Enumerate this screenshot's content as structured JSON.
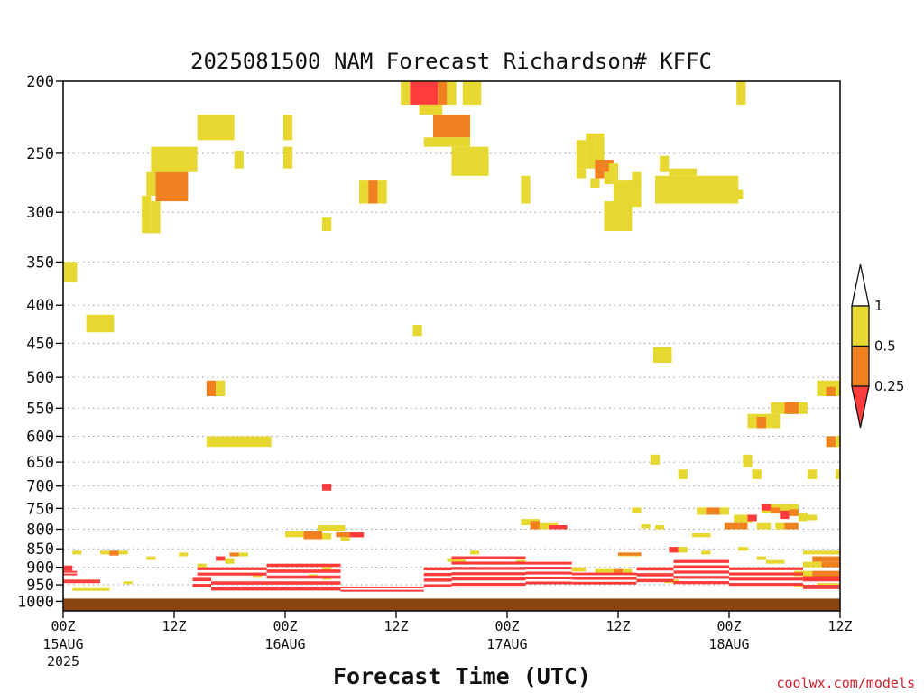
{
  "chart_data": {
    "type": "heatmap",
    "title": "2025081500 NAM Forecast Richardson# KFFC",
    "xlabel": "Forecast Time (UTC)",
    "ylabel": "",
    "credit": "coolwx.com/models",
    "x_range_hours": [
      0,
      84
    ],
    "y_scale": "log-pressure",
    "y_range_hPa": [
      1030,
      200
    ],
    "y_ticks": [
      200,
      250,
      300,
      350,
      400,
      450,
      500,
      550,
      600,
      650,
      700,
      750,
      800,
      850,
      900,
      950,
      1000
    ],
    "y_tick_labels": [
      "200",
      "250",
      "300",
      "350",
      "400",
      "450",
      "500",
      "550",
      "600",
      "650",
      "700",
      "750",
      "800",
      "850",
      "900",
      "950",
      "1000"
    ],
    "x_ticks": [
      {
        "hour": 0,
        "label": "00Z",
        "date": "15AUG",
        "year": "2025"
      },
      {
        "hour": 12,
        "label": "12Z",
        "date": "",
        "year": ""
      },
      {
        "hour": 24,
        "label": "00Z",
        "date": "16AUG",
        "year": ""
      },
      {
        "hour": 36,
        "label": "12Z",
        "date": "",
        "year": ""
      },
      {
        "hour": 48,
        "label": "00Z",
        "date": "17AUG",
        "year": ""
      },
      {
        "hour": 60,
        "label": "12Z",
        "date": "",
        "year": ""
      },
      {
        "hour": 72,
        "label": "00Z",
        "date": "18AUG",
        "year": ""
      },
      {
        "hour": 84,
        "label": "12Z",
        "date": "",
        "year": ""
      }
    ],
    "grid": "dotted horizontal at pressure levels",
    "legend": {
      "placement": "right",
      "labels": [
        "1",
        "0.5",
        "0.25"
      ],
      "bins": [
        {
          "range": "0.5-1",
          "color": "#e6d830"
        },
        {
          "range": "0.25-0.5",
          "color": "#f08020"
        },
        {
          "range": "<0.25",
          "color": "#ff3b3b"
        }
      ]
    },
    "ground_color": "#8b4513",
    "surface_pressure_hPa": 1000,
    "cells": [
      {
        "h0": 36.5,
        "h1": 37.5,
        "p0": 200,
        "p1": 215,
        "c": "Y"
      },
      {
        "h0": 37.5,
        "h1": 40.5,
        "p0": 200,
        "p1": 215,
        "c": "R"
      },
      {
        "h0": 40.5,
        "h1": 41.5,
        "p0": 200,
        "p1": 215,
        "c": "O"
      },
      {
        "h0": 41.5,
        "h1": 42.5,
        "p0": 200,
        "p1": 215,
        "c": "Y"
      },
      {
        "h0": 43.2,
        "h1": 45.2,
        "p0": 200,
        "p1": 215,
        "c": "Y"
      },
      {
        "h0": 38.5,
        "h1": 41,
        "p0": 215,
        "p1": 222,
        "c": "Y"
      },
      {
        "h0": 40,
        "h1": 44,
        "p0": 222,
        "p1": 238,
        "c": "O"
      },
      {
        "h0": 39,
        "h1": 44,
        "p0": 238,
        "p1": 245,
        "c": "Y"
      },
      {
        "h0": 42,
        "h1": 46,
        "p0": 245,
        "p1": 268,
        "c": "Y"
      },
      {
        "h0": 14.5,
        "h1": 18.5,
        "p0": 222,
        "p1": 240,
        "c": "Y"
      },
      {
        "h0": 23.8,
        "h1": 24.8,
        "p0": 222,
        "p1": 240,
        "c": "Y"
      },
      {
        "h0": 23.8,
        "h1": 24.8,
        "p0": 245,
        "p1": 262,
        "c": "Y"
      },
      {
        "h0": 18.5,
        "h1": 19.5,
        "p0": 248,
        "p1": 262,
        "c": "Y"
      },
      {
        "h0": 9.5,
        "h1": 14.5,
        "p0": 245,
        "p1": 265,
        "c": "Y"
      },
      {
        "h0": 9,
        "h1": 10,
        "p0": 265,
        "p1": 285,
        "c": "Y"
      },
      {
        "h0": 10,
        "h1": 13.5,
        "p0": 265,
        "p1": 290,
        "c": "O"
      },
      {
        "h0": 8.5,
        "h1": 9.5,
        "p0": 285,
        "p1": 320,
        "c": "Y"
      },
      {
        "h0": 9.5,
        "h1": 10.5,
        "p0": 290,
        "p1": 320,
        "c": "Y"
      },
      {
        "h0": 28,
        "h1": 29,
        "p0": 305,
        "p1": 318,
        "c": "Y"
      },
      {
        "h0": 32,
        "h1": 33,
        "p0": 272,
        "p1": 292,
        "c": "Y"
      },
      {
        "h0": 33,
        "h1": 34,
        "p0": 272,
        "p1": 292,
        "c": "O"
      },
      {
        "h0": 34,
        "h1": 35,
        "p0": 272,
        "p1": 292,
        "c": "Y"
      },
      {
        "h0": 49.5,
        "h1": 50.5,
        "p0": 268,
        "p1": 292,
        "c": "Y"
      },
      {
        "h0": 55.5,
        "h1": 56.5,
        "p0": 240,
        "p1": 262,
        "c": "Y"
      },
      {
        "h0": 55.5,
        "h1": 56.5,
        "p0": 262,
        "p1": 270,
        "c": "Y"
      },
      {
        "h0": 56.5,
        "h1": 57.5,
        "p0": 235,
        "p1": 262,
        "c": "Y"
      },
      {
        "h0": 57.5,
        "h1": 58.5,
        "p0": 235,
        "p1": 255,
        "c": "Y"
      },
      {
        "h0": 57.5,
        "h1": 58.5,
        "p0": 255,
        "p1": 270,
        "c": "O"
      },
      {
        "h0": 58.5,
        "h1": 59.5,
        "p0": 255,
        "p1": 265,
        "c": "O"
      },
      {
        "h0": 58.5,
        "h1": 59.5,
        "p0": 265,
        "p1": 275,
        "c": "Y"
      },
      {
        "h0": 59,
        "h1": 60,
        "p0": 258,
        "p1": 272,
        "c": "Y"
      },
      {
        "h0": 57,
        "h1": 58,
        "p0": 270,
        "p1": 278,
        "c": "Y"
      },
      {
        "h0": 58.5,
        "h1": 61.5,
        "p0": 290,
        "p1": 318,
        "c": "Y"
      },
      {
        "h0": 59.5,
        "h1": 62.5,
        "p0": 272,
        "p1": 295,
        "c": "Y"
      },
      {
        "h0": 61.5,
        "h1": 62.5,
        "p0": 265,
        "p1": 280,
        "c": "Y"
      },
      {
        "h0": 64.5,
        "h1": 65.5,
        "p0": 252,
        "p1": 265,
        "c": "Y"
      },
      {
        "h0": 64,
        "h1": 73,
        "p0": 268,
        "p1": 292,
        "c": "Y"
      },
      {
        "h0": 65.5,
        "h1": 68.5,
        "p0": 262,
        "p1": 268,
        "c": "Y"
      },
      {
        "h0": 72.5,
        "h1": 73.5,
        "p0": 280,
        "p1": 288,
        "c": "Y"
      },
      {
        "h0": 72.8,
        "h1": 73.8,
        "p0": 200,
        "p1": 215,
        "c": "Y"
      },
      {
        "h0": 0,
        "h1": 1.5,
        "p0": 350,
        "p1": 372,
        "c": "Y"
      },
      {
        "h0": 2.5,
        "h1": 5.5,
        "p0": 412,
        "p1": 435,
        "c": "Y"
      },
      {
        "h0": 37.8,
        "h1": 38.8,
        "p0": 425,
        "p1": 440,
        "c": "Y"
      },
      {
        "h0": 63.8,
        "h1": 65.8,
        "p0": 455,
        "p1": 478,
        "c": "Y"
      },
      {
        "h0": 15.5,
        "h1": 16.5,
        "p0": 505,
        "p1": 530,
        "c": "O"
      },
      {
        "h0": 16.5,
        "h1": 17.5,
        "p0": 505,
        "p1": 530,
        "c": "Y"
      },
      {
        "h0": 15.5,
        "h1": 22.5,
        "p0": 600,
        "p1": 620,
        "c": "Y"
      },
      {
        "h0": 28,
        "h1": 29,
        "p0": 695,
        "p1": 710,
        "c": "R"
      },
      {
        "h0": 81.5,
        "h1": 84,
        "p0": 505,
        "p1": 530,
        "c": "Y"
      },
      {
        "h0": 82.5,
        "h1": 83.5,
        "p0": 515,
        "p1": 530,
        "c": "O"
      },
      {
        "h0": 76.5,
        "h1": 80.5,
        "p0": 540,
        "p1": 560,
        "c": "Y"
      },
      {
        "h0": 78,
        "h1": 79.5,
        "p0": 540,
        "p1": 560,
        "c": "O"
      },
      {
        "h0": 74,
        "h1": 77.5,
        "p0": 560,
        "p1": 585,
        "c": "Y"
      },
      {
        "h0": 75,
        "h1": 76,
        "p0": 565,
        "p1": 585,
        "c": "O"
      },
      {
        "h0": 82.5,
        "h1": 84,
        "p0": 600,
        "p1": 620,
        "c": "Y"
      },
      {
        "h0": 82.5,
        "h1": 83.5,
        "p0": 600,
        "p1": 620,
        "c": "O"
      },
      {
        "h0": 73.5,
        "h1": 74.5,
        "p0": 635,
        "p1": 660,
        "c": "Y"
      },
      {
        "h0": 74.5,
        "h1": 75.5,
        "p0": 665,
        "p1": 685,
        "c": "Y"
      },
      {
        "h0": 80.5,
        "h1": 81.5,
        "p0": 665,
        "p1": 685,
        "c": "Y"
      },
      {
        "h0": 83.5,
        "h1": 84,
        "p0": 665,
        "p1": 685,
        "c": "Y"
      },
      {
        "h0": 63.5,
        "h1": 64.5,
        "p0": 635,
        "p1": 655,
        "c": "Y"
      },
      {
        "h0": 66.5,
        "h1": 67.5,
        "p0": 665,
        "p1": 685,
        "c": "Y"
      },
      {
        "h0": 61.5,
        "h1": 62.5,
        "p0": 748,
        "p1": 760,
        "c": "Y"
      },
      {
        "h0": 68.5,
        "h1": 69.5,
        "p0": 748,
        "p1": 765,
        "c": "Y"
      },
      {
        "h0": 69.5,
        "h1": 71,
        "p0": 748,
        "p1": 765,
        "c": "O"
      },
      {
        "h0": 71,
        "h1": 72,
        "p0": 748,
        "p1": 765,
        "c": "Y"
      },
      {
        "h0": 75.5,
        "h1": 79.5,
        "p0": 740,
        "p1": 760,
        "c": "Y"
      },
      {
        "h0": 75.5,
        "h1": 76.5,
        "p0": 740,
        "p1": 755,
        "c": "R"
      },
      {
        "h0": 76.5,
        "h1": 77.5,
        "p0": 748,
        "p1": 762,
        "c": "O"
      },
      {
        "h0": 77.5,
        "h1": 78.5,
        "p0": 755,
        "p1": 775,
        "c": "R"
      },
      {
        "h0": 78.5,
        "h1": 79.5,
        "p0": 752,
        "p1": 768,
        "c": "O"
      },
      {
        "h0": 72.5,
        "h1": 74.5,
        "p0": 765,
        "p1": 785,
        "c": "Y"
      },
      {
        "h0": 74,
        "h1": 75,
        "p0": 765,
        "p1": 780,
        "c": "R"
      },
      {
        "h0": 79.5,
        "h1": 80.5,
        "p0": 760,
        "p1": 780,
        "c": "Y"
      },
      {
        "h0": 80.5,
        "h1": 81.5,
        "p0": 765,
        "p1": 778,
        "c": "Y"
      },
      {
        "h0": 71.5,
        "h1": 73,
        "p0": 785,
        "p1": 800,
        "c": "O"
      },
      {
        "h0": 73,
        "h1": 74,
        "p0": 785,
        "p1": 800,
        "c": "O"
      },
      {
        "h0": 75,
        "h1": 76.5,
        "p0": 785,
        "p1": 800,
        "c": "Y"
      },
      {
        "h0": 77,
        "h1": 78,
        "p0": 785,
        "p1": 800,
        "c": "Y"
      },
      {
        "h0": 78,
        "h1": 79.5,
        "p0": 785,
        "p1": 800,
        "c": "O"
      },
      {
        "h0": 68,
        "h1": 70,
        "p0": 810,
        "p1": 820,
        "c": "Y"
      },
      {
        "h0": 27.5,
        "h1": 30.5,
        "p0": 790,
        "p1": 805,
        "c": "Y"
      },
      {
        "h0": 24,
        "h1": 26,
        "p0": 805,
        "p1": 820,
        "c": "Y"
      },
      {
        "h0": 26,
        "h1": 28,
        "p0": 805,
        "p1": 825,
        "c": "O"
      },
      {
        "h0": 28,
        "h1": 29,
        "p0": 810,
        "p1": 825,
        "c": "Y"
      },
      {
        "h0": 29.5,
        "h1": 32.5,
        "p0": 808,
        "p1": 820,
        "c": "O"
      },
      {
        "h0": 30,
        "h1": 31,
        "p0": 820,
        "p1": 830,
        "c": "Y"
      },
      {
        "h0": 31,
        "h1": 32.5,
        "p0": 808,
        "p1": 820,
        "c": "R"
      },
      {
        "h0": 49.5,
        "h1": 51.5,
        "p0": 775,
        "p1": 790,
        "c": "Y"
      },
      {
        "h0": 50.5,
        "h1": 51.5,
        "p0": 780,
        "p1": 800,
        "c": "O"
      },
      {
        "h0": 51.5,
        "h1": 53.5,
        "p0": 785,
        "p1": 800,
        "c": "Y"
      },
      {
        "h0": 52.5,
        "h1": 54.5,
        "p0": 790,
        "p1": 800,
        "c": "R"
      },
      {
        "h0": 62.5,
        "h1": 63.5,
        "p0": 788,
        "p1": 798,
        "c": "Y"
      },
      {
        "h0": 64,
        "h1": 65,
        "p0": 790,
        "p1": 800,
        "c": "Y"
      },
      {
        "h0": 1,
        "h1": 2,
        "p0": 855,
        "p1": 865,
        "c": "Y"
      },
      {
        "h0": 4,
        "h1": 5,
        "p0": 855,
        "p1": 865,
        "c": "Y"
      },
      {
        "h0": 5,
        "h1": 6,
        "p0": 855,
        "p1": 868,
        "c": "O"
      },
      {
        "h0": 6,
        "h1": 7,
        "p0": 855,
        "p1": 865,
        "c": "Y"
      },
      {
        "h0": 9,
        "h1": 10,
        "p0": 870,
        "p1": 880,
        "c": "Y"
      },
      {
        "h0": 12.5,
        "h1": 13.5,
        "p0": 860,
        "p1": 870,
        "c": "Y"
      },
      {
        "h0": 14.5,
        "h1": 15.5,
        "p0": 890,
        "p1": 900,
        "c": "Y"
      },
      {
        "h0": 16.5,
        "h1": 17.5,
        "p0": 870,
        "p1": 882,
        "c": "R"
      },
      {
        "h0": 18,
        "h1": 19,
        "p0": 860,
        "p1": 870,
        "c": "O"
      },
      {
        "h0": 19,
        "h1": 20,
        "p0": 860,
        "p1": 870,
        "c": "Y"
      },
      {
        "h0": 17.5,
        "h1": 18.5,
        "p0": 875,
        "p1": 890,
        "c": "Y"
      },
      {
        "h0": 0,
        "h1": 1,
        "p0": 895,
        "p1": 910,
        "c": "R"
      },
      {
        "h0": 80,
        "h1": 84,
        "p0": 855,
        "p1": 865,
        "c": "Y"
      },
      {
        "h0": 81,
        "h1": 84,
        "p0": 870,
        "p1": 885,
        "c": "O"
      },
      {
        "h0": 80,
        "h1": 82,
        "p0": 885,
        "p1": 900,
        "c": "Y"
      },
      {
        "h0": 82,
        "h1": 84,
        "p0": 885,
        "p1": 900,
        "c": "O"
      },
      {
        "h0": 79,
        "h1": 81,
        "p0": 910,
        "p1": 925,
        "c": "Y"
      },
      {
        "h0": 81,
        "h1": 84,
        "p0": 910,
        "p1": 925,
        "c": "O"
      },
      {
        "h0": 80,
        "h1": 84,
        "p0": 925,
        "p1": 940,
        "c": "R"
      },
      {
        "h0": 60,
        "h1": 62.5,
        "p0": 860,
        "p1": 870,
        "c": "Y"
      },
      {
        "h0": 60,
        "h1": 62.5,
        "p0": 860,
        "p1": 868,
        "c": "O"
      },
      {
        "h0": 65.5,
        "h1": 66.5,
        "p0": 845,
        "p1": 860,
        "c": "R"
      },
      {
        "h0": 66.5,
        "h1": 67.5,
        "p0": 845,
        "p1": 860,
        "c": "Y"
      },
      {
        "h0": 69,
        "h1": 70,
        "p0": 855,
        "p1": 865,
        "c": "Y"
      },
      {
        "h0": 73,
        "h1": 74,
        "p0": 845,
        "p1": 855,
        "c": "Y"
      },
      {
        "h0": 75,
        "h1": 76,
        "p0": 870,
        "p1": 880,
        "c": "Y"
      },
      {
        "h0": 76,
        "h1": 78,
        "p0": 880,
        "p1": 890,
        "c": "Y"
      },
      {
        "h0": 57.5,
        "h1": 59.5,
        "p0": 905,
        "p1": 915,
        "c": "Y"
      },
      {
        "h0": 59.5,
        "h1": 60.5,
        "p0": 905,
        "p1": 920,
        "c": "O"
      },
      {
        "h0": 60.5,
        "h1": 61.5,
        "p0": 905,
        "p1": 920,
        "c": "Y"
      },
      {
        "h0": 55,
        "h1": 56.5,
        "p0": 900,
        "p1": 912,
        "c": "Y"
      },
      {
        "h0": 49,
        "h1": 50,
        "p0": 880,
        "p1": 890,
        "c": "Y"
      },
      {
        "h0": 44,
        "h1": 45,
        "p0": 855,
        "p1": 865,
        "c": "Y"
      },
      {
        "h0": 41.5,
        "h1": 43.5,
        "p0": 875,
        "p1": 885,
        "c": "Y"
      },
      {
        "h0": 28,
        "h1": 29,
        "p0": 895,
        "p1": 910,
        "c": "Y"
      },
      {
        "h0": 28,
        "h1": 29,
        "p0": 925,
        "p1": 935,
        "c": "Y"
      },
      {
        "h0": 26.5,
        "h1": 27.5,
        "p0": 920,
        "p1": 930,
        "c": "Y"
      },
      {
        "h0": 20.5,
        "h1": 21.5,
        "p0": 920,
        "p1": 930,
        "c": "Y"
      },
      {
        "h0": 1,
        "h1": 4,
        "p0": 960,
        "p1": 968,
        "c": "Y"
      },
      {
        "h0": 4,
        "h1": 5,
        "p0": 960,
        "p1": 968,
        "c": "Y"
      },
      {
        "h0": 6.5,
        "h1": 7.5,
        "p0": 940,
        "p1": 948,
        "c": "Y"
      },
      {
        "h0": 65,
        "h1": 66.5,
        "p0": 935,
        "p1": 945,
        "c": "Y"
      },
      {
        "h0": 79,
        "h1": 80,
        "p0": 945,
        "p1": 955,
        "c": "Y"
      },
      {
        "h0": 81.5,
        "h1": 84,
        "p0": 945,
        "p1": 955,
        "c": "Y"
      }
    ],
    "bands": [
      {
        "h0": 0,
        "h1": 1.5,
        "p0": 910,
        "p1": 925,
        "c": "R"
      },
      {
        "h0": 0,
        "h1": 4,
        "p0": 935,
        "p1": 945,
        "c": "R"
      },
      {
        "h0": 14,
        "h1": 16,
        "p0": 930,
        "p1": 965,
        "c": "R"
      },
      {
        "h0": 14.5,
        "h1": 22,
        "p0": 900,
        "p1": 930,
        "c": "R"
      },
      {
        "h0": 16,
        "h1": 30,
        "p0": 940,
        "p1": 975,
        "c": "R"
      },
      {
        "h0": 22,
        "h1": 30,
        "p0": 890,
        "p1": 940,
        "c": "R"
      },
      {
        "h0": 30,
        "h1": 39,
        "p0": 955,
        "p1": 975,
        "c": "R"
      },
      {
        "h0": 39,
        "h1": 42,
        "p0": 900,
        "p1": 965,
        "c": "R"
      },
      {
        "h0": 42,
        "h1": 50,
        "p0": 870,
        "p1": 960,
        "c": "R"
      },
      {
        "h0": 50,
        "h1": 55,
        "p0": 885,
        "p1": 955,
        "c": "R"
      },
      {
        "h0": 55,
        "h1": 62,
        "p0": 915,
        "p1": 955,
        "c": "R"
      },
      {
        "h0": 62,
        "h1": 66,
        "p0": 900,
        "p1": 950,
        "c": "R"
      },
      {
        "h0": 66,
        "h1": 72,
        "p0": 880,
        "p1": 955,
        "c": "R"
      },
      {
        "h0": 72,
        "h1": 80,
        "p0": 900,
        "p1": 960,
        "c": "R"
      },
      {
        "h0": 80,
        "h1": 84,
        "p0": 950,
        "p1": 965,
        "c": "R"
      }
    ]
  }
}
